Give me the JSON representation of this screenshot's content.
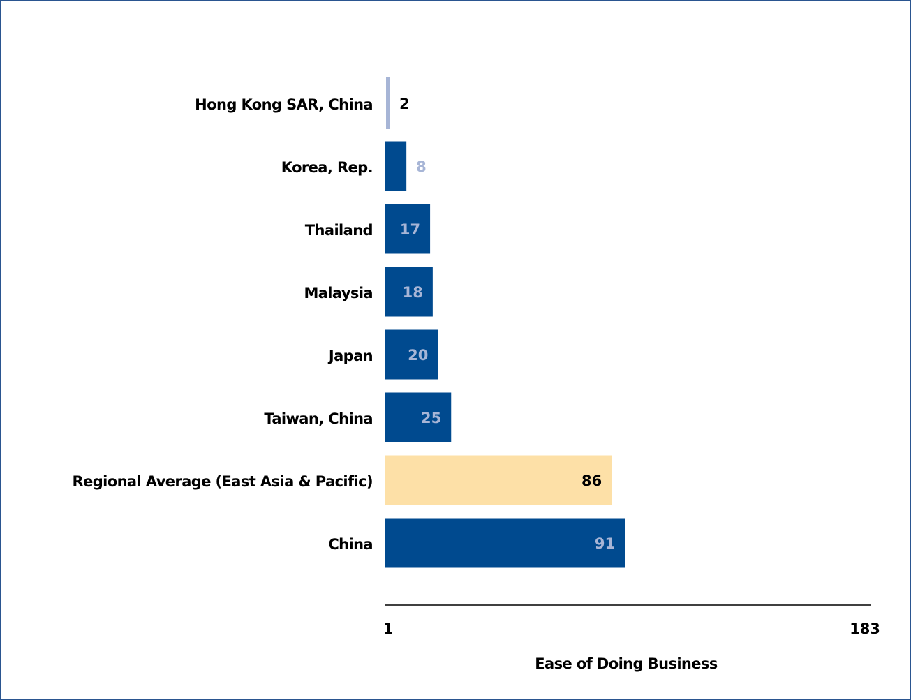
{
  "chart_data": {
    "type": "bar",
    "orientation": "horizontal",
    "categories": [
      "Hong Kong SAR, China",
      "Korea, Rep.",
      "Thailand",
      "Malaysia",
      "Japan",
      "Taiwan, China",
      "Regional Average (East Asia & Pacific)",
      "China"
    ],
    "values": [
      2,
      8,
      17,
      18,
      20,
      25,
      86,
      91
    ],
    "value_labels": [
      "2",
      "8",
      "17",
      "18",
      "20",
      "25",
      "86",
      "91"
    ],
    "bar_colors": [
      "#a7b5d6",
      "#004a8f",
      "#004a8f",
      "#004a8f",
      "#004a8f",
      "#004a8f",
      "#fde0a7",
      "#004a8f"
    ],
    "label_colors": [
      "#000000",
      "#a7b5d6",
      "#a7b5d6",
      "#a7b5d6",
      "#a7b5d6",
      "#a7b5d6",
      "#000000",
      "#a7b5d6"
    ],
    "xlim": [
      1,
      183
    ],
    "xticks": [
      "1",
      "183"
    ],
    "xlabel": "Ease of Doing Business",
    "title": "",
    "grid": false,
    "legend": "none"
  }
}
